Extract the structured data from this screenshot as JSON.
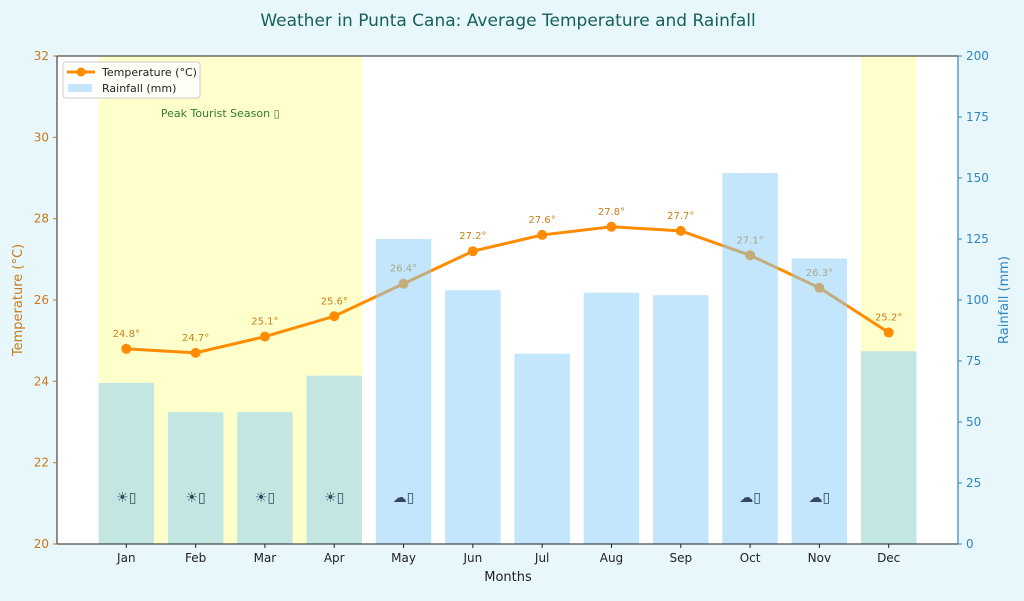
{
  "chart_data": {
    "type": "bar+line",
    "title": "Weather in Punta Cana: Average Temperature and Rainfall",
    "xlabel": "Months",
    "ylabel_left": "Temperature (°C)",
    "ylabel_right": "Rainfall (mm)",
    "categories": [
      "Jan",
      "Feb",
      "Mar",
      "Apr",
      "May",
      "Jun",
      "Jul",
      "Aug",
      "Sep",
      "Oct",
      "Nov",
      "Dec"
    ],
    "ylim_left": [
      20,
      32
    ],
    "yticks_left": [
      20,
      22,
      24,
      26,
      28,
      30,
      32
    ],
    "ylim_right": [
      0,
      200
    ],
    "yticks_right": [
      0,
      25,
      50,
      75,
      100,
      125,
      150,
      175,
      200
    ],
    "series": [
      {
        "name": "Temperature (°C)",
        "type": "line",
        "color": "#ff8c00",
        "values": [
          24.8,
          24.7,
          25.1,
          25.6,
          26.4,
          27.2,
          27.6,
          27.8,
          27.7,
          27.1,
          26.3,
          25.2
        ],
        "labels": [
          "24.8°",
          "24.7°",
          "25.1°",
          "25.6°",
          "26.4°",
          "27.2°",
          "27.6°",
          "27.8°",
          "27.7°",
          "27.1°",
          "26.3°",
          "25.2°"
        ]
      },
      {
        "name": "Rainfall (mm)",
        "type": "bar",
        "color": "#87cefa",
        "values": [
          66,
          54,
          54,
          69,
          125,
          104,
          78,
          103,
          102,
          152,
          117,
          79
        ]
      }
    ],
    "highlight": {
      "label": "Peak Tourist Season ▯",
      "color": "#ffffcc",
      "months": [
        "Jan",
        "Feb",
        "Mar",
        "Apr",
        "Dec"
      ]
    },
    "weather_icons": [
      {
        "month": "Jan",
        "icon": "sun-icon",
        "text": "☀▯"
      },
      {
        "month": "Feb",
        "icon": "sun-icon",
        "text": "☀▯"
      },
      {
        "month": "Mar",
        "icon": "sun-icon",
        "text": "☀▯"
      },
      {
        "month": "Apr",
        "icon": "sun-icon",
        "text": "☀▯"
      },
      {
        "month": "May",
        "icon": "cloud-icon",
        "text": "☁▯"
      },
      {
        "month": "Oct",
        "icon": "cloud-icon",
        "text": "☁▯"
      },
      {
        "month": "Nov",
        "icon": "cloud-icon",
        "text": "☁▯"
      }
    ],
    "legend": {
      "placement": "top-left",
      "entries": [
        "Temperature (°C)",
        "Rainfall (mm)"
      ]
    },
    "grid": false
  }
}
